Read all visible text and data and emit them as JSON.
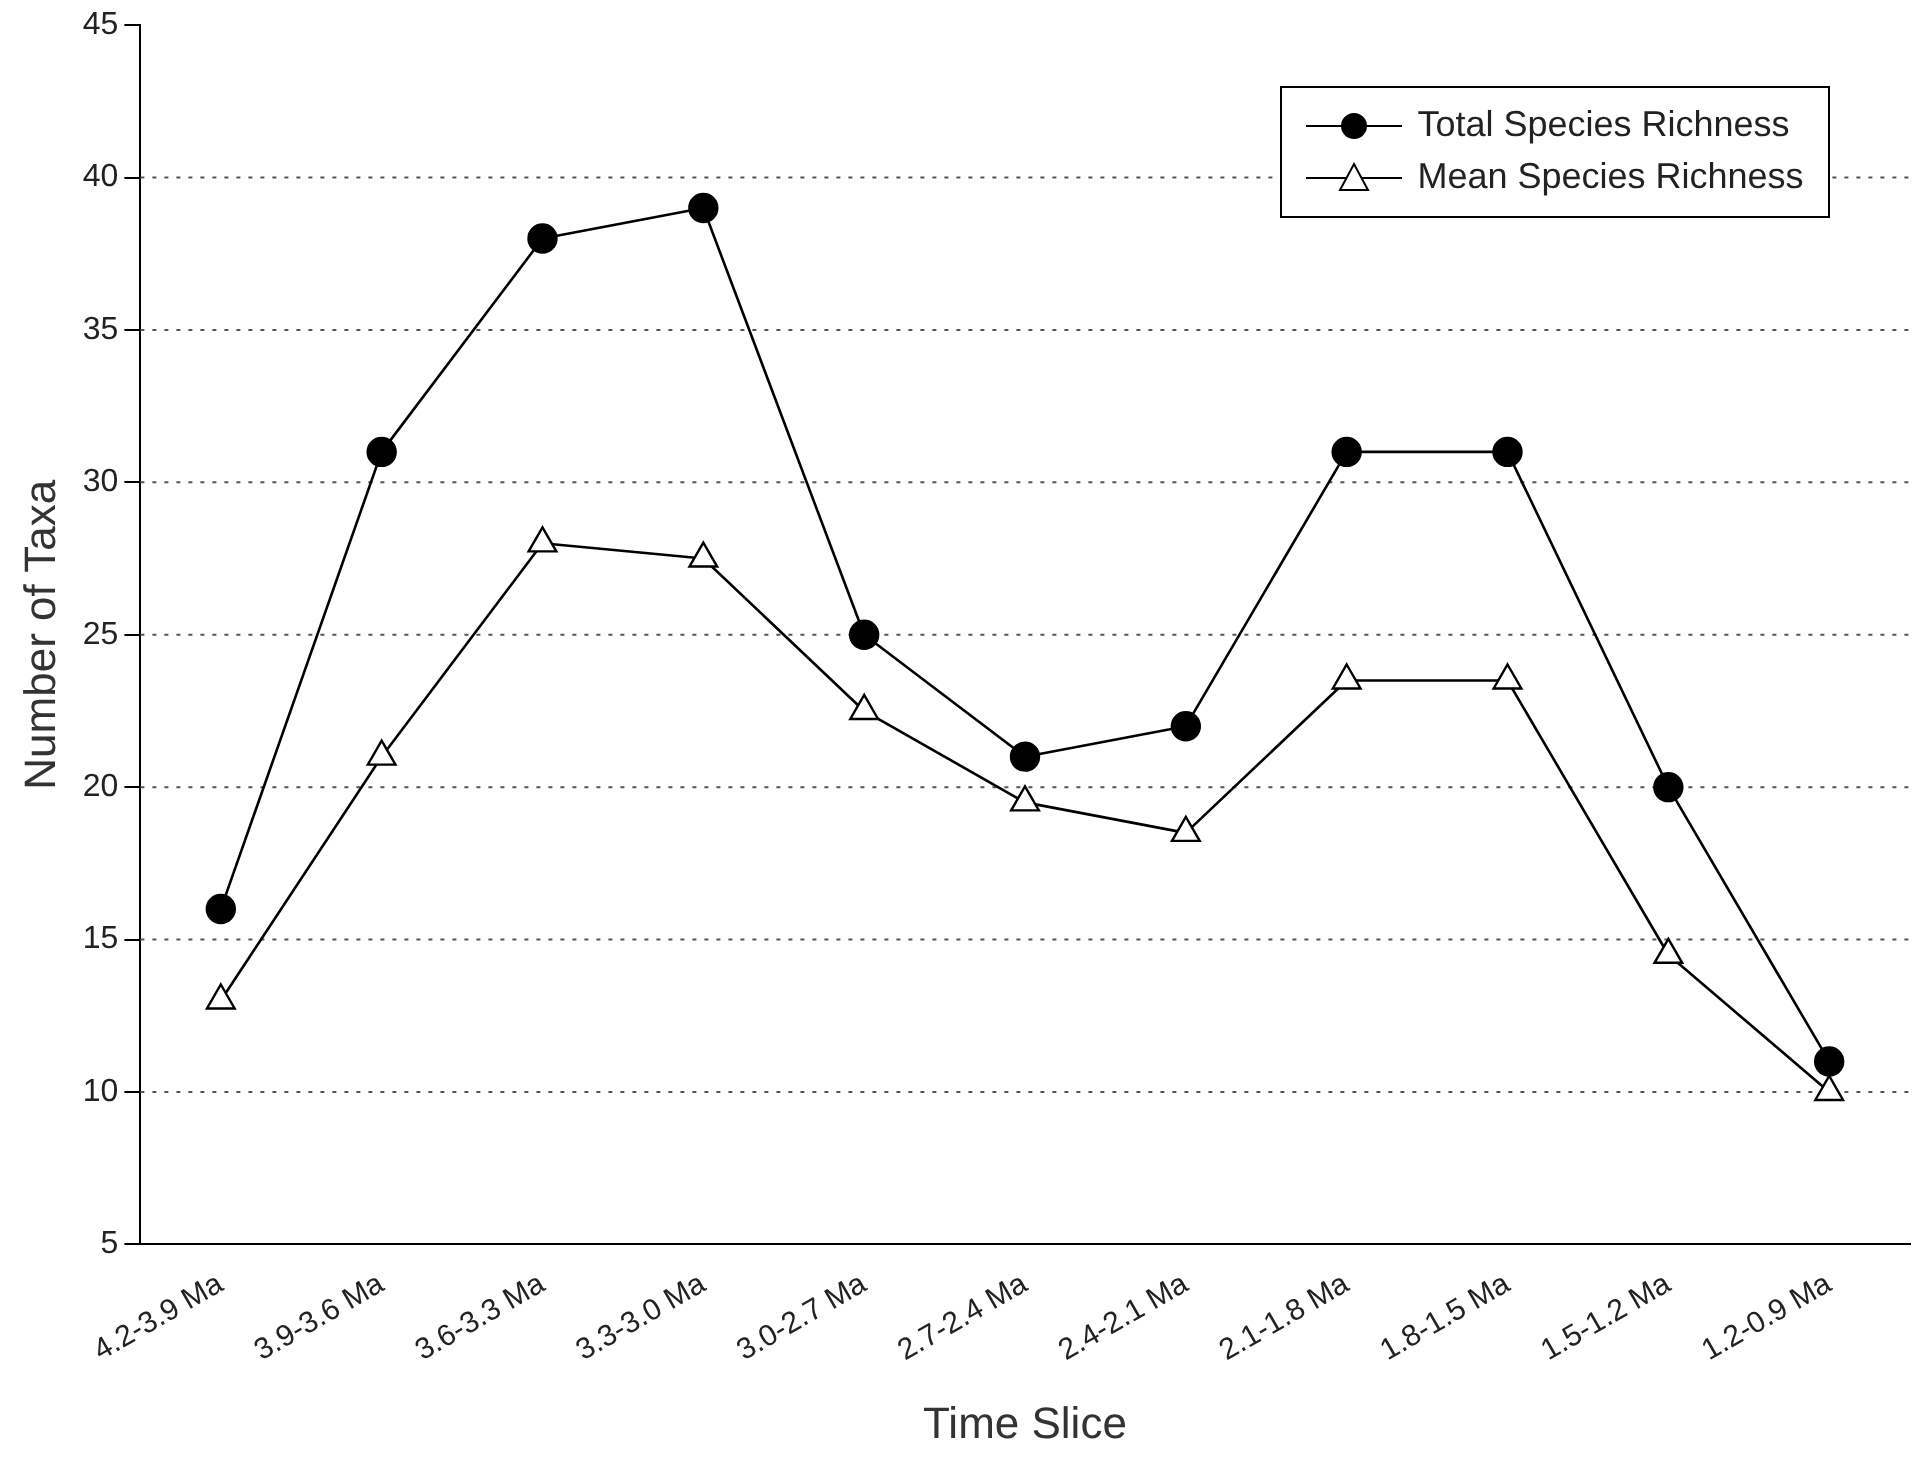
{
  "chart_data": {
    "type": "line",
    "xlabel": "Time Slice",
    "ylabel": "Number of Taxa",
    "categories": [
      "4.2-3.9 Ma",
      "3.9-3.6 Ma",
      "3.6-3.3 Ma",
      "3.3-3.0 Ma",
      "3.0-2.7 Ma",
      "2.7-2.4 Ma",
      "2.4-2.1 Ma",
      "2.1-1.8 Ma",
      "1.8-1.5 Ma",
      "1.5-1.2 Ma",
      "1.2-0.9 Ma"
    ],
    "series": [
      {
        "name": "Total Species Richness",
        "color": "#000000",
        "marker": "circle",
        "values": [
          16,
          31,
          38,
          39,
          25,
          21,
          22,
          31,
          31,
          20,
          11
        ]
      },
      {
        "name": "Mean Species Richness",
        "color": "#000000",
        "marker": "triangle",
        "values": [
          13,
          21,
          28,
          27.5,
          22.5,
          19.5,
          18.5,
          23.5,
          23.5,
          14.5,
          10
        ]
      }
    ],
    "ylim": [
      5,
      45
    ],
    "yticks": [
      5,
      10,
      15,
      20,
      25,
      30,
      35,
      40,
      45
    ],
    "grid": "y",
    "legend": "top right",
    "line_style": "solid"
  }
}
